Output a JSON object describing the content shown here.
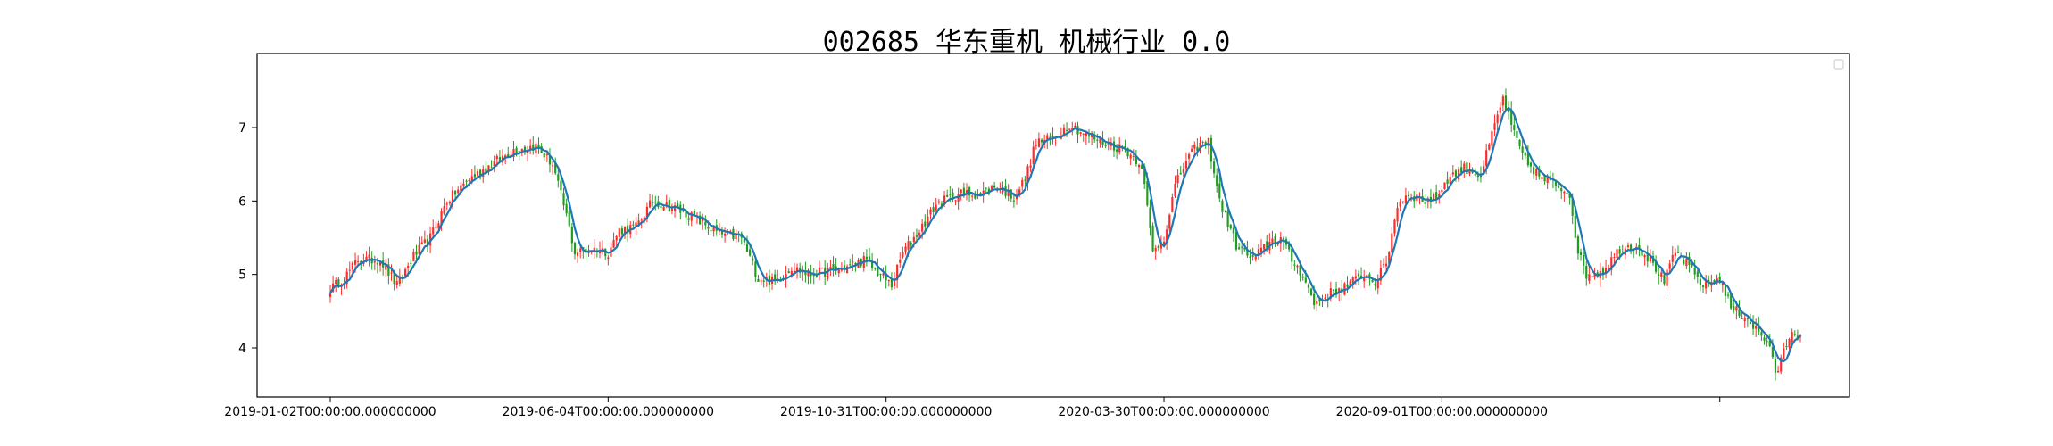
{
  "chart_data": {
    "type": "candlestick",
    "title": "002685 华东重机 机械行业 0.0",
    "xlabel": "",
    "ylabel": "",
    "ylim": [
      3.3,
      7.9
    ],
    "y_ticks": [
      4,
      5,
      6,
      7
    ],
    "x_tick_labels": [
      "2019-01-02T00:00:00.000000000",
      "2019-06-04T00:00:00.000000000",
      "2019-10-31T00:00:00.000000000",
      "2020-03-30T00:00:00.000000000",
      "2020-09-01T00:00:00.000000000",
      ""
    ],
    "x_tick_indices": [
      0,
      100,
      200,
      300,
      400,
      500
    ],
    "grid": false,
    "legend": "top-right, empty",
    "colors": {
      "up": "#ff2b2b",
      "down": "#1f9d1f",
      "ma_line": "#1f77b4"
    },
    "close_anchors": [
      [
        0,
        4.8
      ],
      [
        5,
        4.95
      ],
      [
        10,
        5.2
      ],
      [
        18,
        5.2
      ],
      [
        24,
        4.85
      ],
      [
        30,
        5.25
      ],
      [
        36,
        5.5
      ],
      [
        42,
        6.0
      ],
      [
        50,
        6.3
      ],
      [
        58,
        6.5
      ],
      [
        66,
        6.7
      ],
      [
        74,
        6.75
      ],
      [
        80,
        6.5
      ],
      [
        85,
        5.8
      ],
      [
        88,
        5.3
      ],
      [
        96,
        5.35
      ],
      [
        100,
        5.3
      ],
      [
        104,
        5.6
      ],
      [
        110,
        5.65
      ],
      [
        116,
        6.0
      ],
      [
        124,
        5.9
      ],
      [
        132,
        5.75
      ],
      [
        140,
        5.55
      ],
      [
        148,
        5.5
      ],
      [
        154,
        4.95
      ],
      [
        160,
        4.9
      ],
      [
        166,
        5.1
      ],
      [
        172,
        5.0
      ],
      [
        180,
        5.05
      ],
      [
        186,
        5.1
      ],
      [
        192,
        5.2
      ],
      [
        198,
        5.0
      ],
      [
        202,
        4.85
      ],
      [
        206,
        5.3
      ],
      [
        212,
        5.6
      ],
      [
        218,
        5.95
      ],
      [
        226,
        6.1
      ],
      [
        234,
        6.1
      ],
      [
        240,
        6.2
      ],
      [
        246,
        6.05
      ],
      [
        250,
        6.3
      ],
      [
        254,
        6.8
      ],
      [
        260,
        6.85
      ],
      [
        266,
        7.05
      ],
      [
        272,
        6.9
      ],
      [
        278,
        6.8
      ],
      [
        286,
        6.7
      ],
      [
        292,
        6.5
      ],
      [
        294,
        5.9
      ],
      [
        296,
        5.3
      ],
      [
        300,
        5.5
      ],
      [
        304,
        6.2
      ],
      [
        308,
        6.55
      ],
      [
        312,
        6.75
      ],
      [
        316,
        6.8
      ],
      [
        320,
        6.0
      ],
      [
        326,
        5.4
      ],
      [
        332,
        5.2
      ],
      [
        338,
        5.45
      ],
      [
        342,
        5.5
      ],
      [
        346,
        5.2
      ],
      [
        350,
        5.0
      ],
      [
        354,
        4.6
      ],
      [
        360,
        4.75
      ],
      [
        366,
        4.85
      ],
      [
        372,
        5.0
      ],
      [
        376,
        4.9
      ],
      [
        380,
        5.15
      ],
      [
        384,
        5.95
      ],
      [
        388,
        6.1
      ],
      [
        394,
        6.0
      ],
      [
        398,
        6.05
      ],
      [
        402,
        6.3
      ],
      [
        408,
        6.45
      ],
      [
        414,
        6.35
      ],
      [
        418,
        6.9
      ],
      [
        422,
        7.4
      ],
      [
        426,
        6.9
      ],
      [
        430,
        6.55
      ],
      [
        436,
        6.3
      ],
      [
        442,
        6.2
      ],
      [
        446,
        6.1
      ],
      [
        449,
        5.3
      ],
      [
        452,
        5.0
      ],
      [
        458,
        5.05
      ],
      [
        464,
        5.35
      ],
      [
        470,
        5.4
      ],
      [
        476,
        5.15
      ],
      [
        480,
        4.9
      ],
      [
        484,
        5.3
      ],
      [
        488,
        5.15
      ],
      [
        494,
        4.85
      ],
      [
        500,
        4.95
      ],
      [
        504,
        4.55
      ],
      [
        510,
        4.4
      ],
      [
        514,
        4.2
      ],
      [
        518,
        4.05
      ],
      [
        520,
        3.6
      ],
      [
        522,
        3.85
      ],
      [
        526,
        4.25
      ],
      [
        529,
        4.15
      ]
    ]
  }
}
